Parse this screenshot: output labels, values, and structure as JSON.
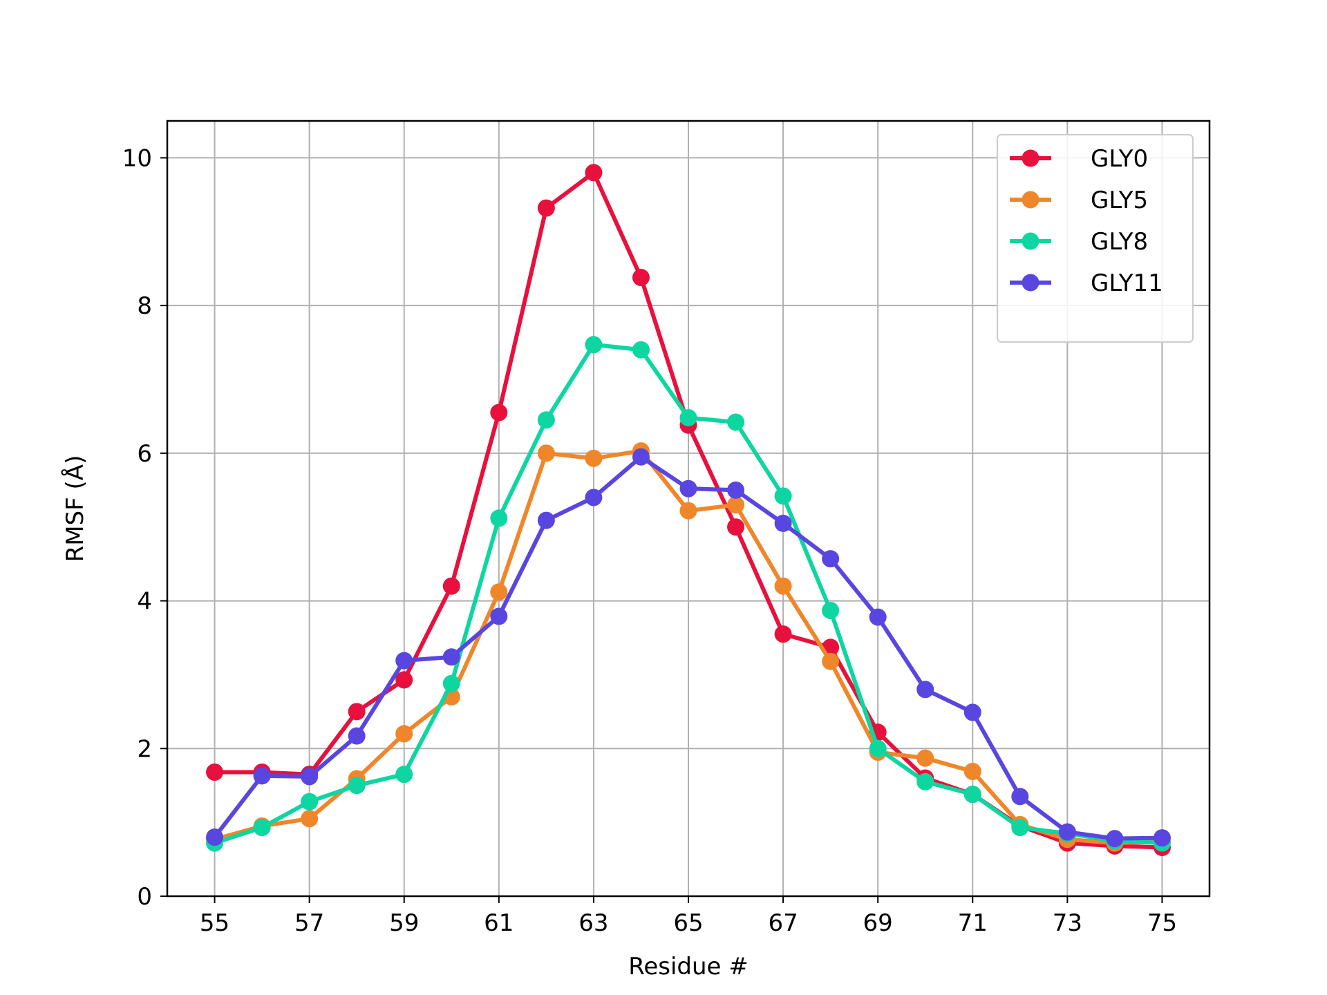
{
  "chart_data": {
    "type": "line",
    "title": "",
    "xlabel": "Residue #",
    "ylabel": "RMSF (Å)",
    "xlim": [
      54,
      76
    ],
    "ylim": [
      0,
      10.5
    ],
    "xticks": [
      55,
      57,
      59,
      61,
      63,
      65,
      67,
      69,
      71,
      73,
      75
    ],
    "yticks": [
      0,
      2,
      4,
      6,
      8,
      10
    ],
    "grid": true,
    "legend_position": "top-right",
    "x": [
      55,
      56,
      57,
      58,
      59,
      60,
      61,
      62,
      63,
      64,
      65,
      66,
      67,
      68,
      69,
      70,
      71,
      72,
      73,
      74,
      75
    ],
    "series": [
      {
        "name": "GLY0",
        "color": "#e8103c",
        "values": [
          1.68,
          1.68,
          1.65,
          2.5,
          2.93,
          4.2,
          6.55,
          9.32,
          9.8,
          8.38,
          6.38,
          5.0,
          3.55,
          3.37,
          2.22,
          1.6,
          1.38,
          0.95,
          0.72,
          0.68,
          0.66
        ]
      },
      {
        "name": "GLY5",
        "color": "#f0862a",
        "values": [
          0.77,
          0.95,
          1.05,
          1.59,
          2.2,
          2.7,
          4.12,
          6.0,
          5.93,
          6.03,
          5.22,
          5.3,
          4.2,
          3.18,
          1.95,
          1.87,
          1.69,
          0.97,
          0.77,
          0.72,
          0.74
        ]
      },
      {
        "name": "GLY8",
        "color": "#0dd6a0",
        "values": [
          0.72,
          0.93,
          1.28,
          1.5,
          1.65,
          2.88,
          5.12,
          6.45,
          7.47,
          7.4,
          6.48,
          6.42,
          5.42,
          3.87,
          2.0,
          1.55,
          1.38,
          0.93,
          0.85,
          0.75,
          0.72
        ]
      },
      {
        "name": "GLY11",
        "color": "#5946e0",
        "values": [
          0.8,
          1.63,
          1.62,
          2.17,
          3.19,
          3.24,
          3.79,
          5.09,
          5.4,
          5.95,
          5.52,
          5.5,
          5.05,
          4.57,
          3.78,
          2.8,
          2.49,
          1.35,
          0.87,
          0.78,
          0.79
        ]
      }
    ]
  }
}
